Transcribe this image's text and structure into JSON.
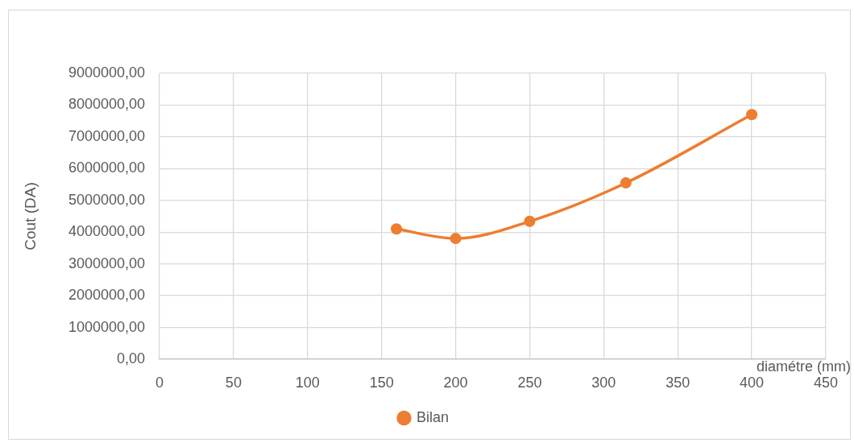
{
  "chart_data": {
    "type": "line",
    "xlabel": "diamétre (mm)",
    "ylabel": "Cout (DA)",
    "x": [
      160,
      200,
      250,
      315,
      400
    ],
    "series": [
      {
        "name": "Bilan",
        "color": "#ed7d31",
        "values": [
          4100000,
          3800000,
          4340000,
          5550000,
          7700000
        ]
      }
    ],
    "xlim": [
      0,
      450
    ],
    "xticks": [
      0,
      50,
      100,
      150,
      200,
      250,
      300,
      350,
      400,
      450
    ],
    "ylim": [
      0,
      9000000
    ],
    "yticks": [
      {
        "value": 0,
        "label": "0,00"
      },
      {
        "value": 1000000,
        "label": "1000000,00"
      },
      {
        "value": 2000000,
        "label": "2000000,00"
      },
      {
        "value": 3000000,
        "label": "3000000,00"
      },
      {
        "value": 4000000,
        "label": "4000000,00"
      },
      {
        "value": 5000000,
        "label": "5000000,00"
      },
      {
        "value": 6000000,
        "label": "6000000,00"
      },
      {
        "value": 7000000,
        "label": "7000000,00"
      },
      {
        "value": 8000000,
        "label": "8000000,00"
      },
      {
        "value": 9000000,
        "label": "9000000,00"
      }
    ],
    "grid": true,
    "legend": "bottom",
    "marker": "circle",
    "line_style": "solid"
  }
}
